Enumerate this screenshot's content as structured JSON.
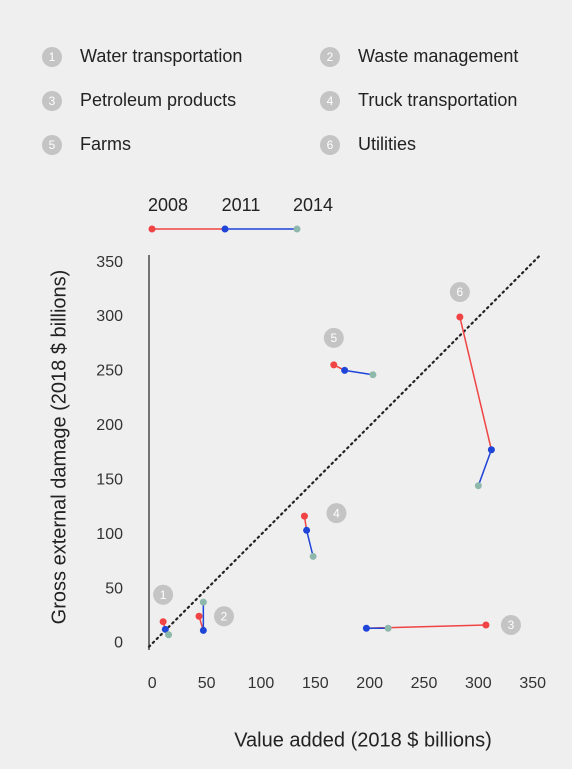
{
  "chart_data": {
    "type": "connected-scatter",
    "legend_items": [],
    "years": [
      "2008",
      "2011",
      "2014"
    ],
    "year_colors": [
      "#f04444",
      "#1f44d8",
      "#8fb8ac"
    ],
    "x_label": "Value added (2018 $ billions)",
    "y_label": "Gross external damage (2018 $ billions)",
    "series": [
      {
        "name": "Water transportation",
        "label": "1",
        "x": [
          10,
          12,
          15
        ],
        "values": [
          20,
          13,
          8
        ]
      },
      {
        "name": "Waste management",
        "label": "2",
        "x": [
          43,
          47,
          47
        ],
        "values": [
          25,
          12,
          38
        ]
      },
      {
        "name": "Petroleum products",
        "label": "3",
        "x": [
          307,
          197,
          217
        ],
        "values": [
          17,
          14,
          14
        ]
      },
      {
        "name": "Truck transportation",
        "label": "4",
        "x": [
          140,
          142,
          148
        ],
        "values": [
          117,
          104,
          80
        ]
      },
      {
        "name": "Farms",
        "label": "5",
        "x": [
          167,
          177,
          203
        ],
        "values": [
          256,
          251,
          247
        ]
      },
      {
        "name": "Utilities",
        "label": "6",
        "x": [
          283,
          312,
          300
        ],
        "values": [
          300,
          178,
          145
        ]
      }
    ],
    "xlim": [
      -3,
      365
    ],
    "ylim": [
      -6,
      357
    ],
    "xticks": [
      0,
      50,
      100,
      150,
      200,
      250,
      300,
      350
    ],
    "yticks": [
      0,
      50,
      100,
      150,
      200,
      250,
      300,
      350
    ],
    "diagonal": true
  }
}
